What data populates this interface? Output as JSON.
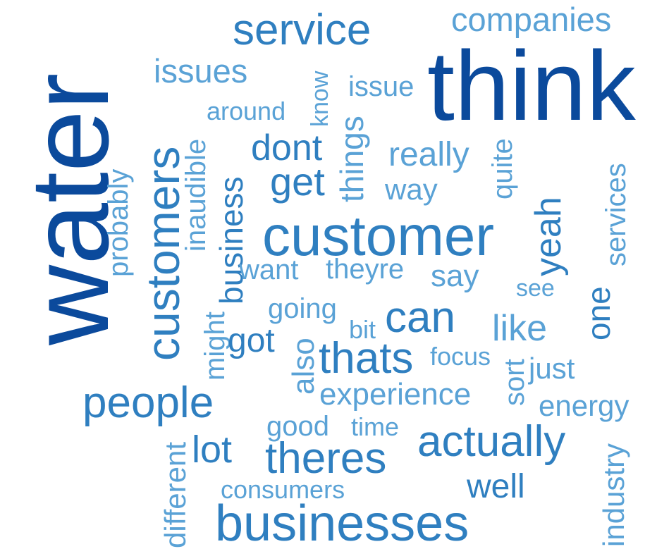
{
  "palette": {
    "dark": "#0b4a9c",
    "mid": "#2f7fc0",
    "light": "#5aa2d6"
  },
  "words": [
    {
      "id": "water",
      "text": "water",
      "tone": "dark"
    },
    {
      "id": "think",
      "text": "think",
      "tone": "dark"
    },
    {
      "id": "customer",
      "text": "customer",
      "tone": "mid"
    },
    {
      "id": "customers",
      "text": "customers",
      "tone": "mid"
    },
    {
      "id": "businesses",
      "text": "businesses",
      "tone": "mid"
    },
    {
      "id": "service",
      "text": "service",
      "tone": "mid"
    },
    {
      "id": "people",
      "text": "people",
      "tone": "mid"
    },
    {
      "id": "actually",
      "text": "actually",
      "tone": "mid"
    },
    {
      "id": "theres",
      "text": "theres",
      "tone": "mid"
    },
    {
      "id": "thats",
      "text": "thats",
      "tone": "mid"
    },
    {
      "id": "companies",
      "text": "companies",
      "tone": "light"
    },
    {
      "id": "issues",
      "text": "issues",
      "tone": "light"
    },
    {
      "id": "issue",
      "text": "issue",
      "tone": "light"
    },
    {
      "id": "know",
      "text": "know",
      "tone": "light"
    },
    {
      "id": "around",
      "text": "around",
      "tone": "light"
    },
    {
      "id": "things",
      "text": "things",
      "tone": "light"
    },
    {
      "id": "inaudible",
      "text": "inaudible",
      "tone": "light"
    },
    {
      "id": "dont",
      "text": "dont",
      "tone": "mid"
    },
    {
      "id": "really",
      "text": "really",
      "tone": "light"
    },
    {
      "id": "quite",
      "text": "quite",
      "tone": "light"
    },
    {
      "id": "services",
      "text": "services",
      "tone": "light"
    },
    {
      "id": "probably",
      "text": "probably",
      "tone": "light"
    },
    {
      "id": "get",
      "text": "get",
      "tone": "mid"
    },
    {
      "id": "way",
      "text": "way",
      "tone": "light"
    },
    {
      "id": "business",
      "text": "business",
      "tone": "mid"
    },
    {
      "id": "yeah",
      "text": "yeah",
      "tone": "mid"
    },
    {
      "id": "want",
      "text": "want",
      "tone": "light"
    },
    {
      "id": "theyre",
      "text": "theyre",
      "tone": "light"
    },
    {
      "id": "say",
      "text": "say",
      "tone": "light"
    },
    {
      "id": "see",
      "text": "see",
      "tone": "light"
    },
    {
      "id": "one",
      "text": "one",
      "tone": "mid"
    },
    {
      "id": "going",
      "text": "going",
      "tone": "light"
    },
    {
      "id": "can",
      "text": "can",
      "tone": "mid"
    },
    {
      "id": "bit",
      "text": "bit",
      "tone": "light"
    },
    {
      "id": "like",
      "text": "like",
      "tone": "light"
    },
    {
      "id": "might",
      "text": "might",
      "tone": "light"
    },
    {
      "id": "got",
      "text": "got",
      "tone": "mid"
    },
    {
      "id": "also",
      "text": "also",
      "tone": "light"
    },
    {
      "id": "focus",
      "text": "focus",
      "tone": "light"
    },
    {
      "id": "sort",
      "text": "sort",
      "tone": "light"
    },
    {
      "id": "just",
      "text": "just",
      "tone": "light"
    },
    {
      "id": "experience",
      "text": "experience",
      "tone": "light"
    },
    {
      "id": "energy",
      "text": "energy",
      "tone": "light"
    },
    {
      "id": "lot",
      "text": "lot",
      "tone": "mid"
    },
    {
      "id": "good",
      "text": "good",
      "tone": "light"
    },
    {
      "id": "time",
      "text": "time",
      "tone": "light"
    },
    {
      "id": "different",
      "text": "different",
      "tone": "light"
    },
    {
      "id": "industry",
      "text": "industry",
      "tone": "light"
    },
    {
      "id": "consumers",
      "text": "consumers",
      "tone": "light"
    },
    {
      "id": "well",
      "text": "well",
      "tone": "mid"
    }
  ]
}
